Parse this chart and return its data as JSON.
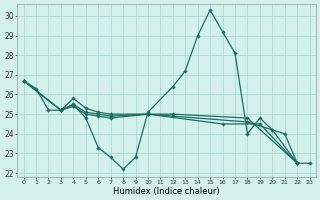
{
  "xlabel": "Humidex (Indice chaleur)",
  "xlim": [
    -0.5,
    23.5
  ],
  "ylim": [
    21.8,
    30.6
  ],
  "yticks": [
    22,
    23,
    24,
    25,
    26,
    27,
    28,
    29,
    30
  ],
  "xticks": [
    0,
    1,
    2,
    3,
    4,
    5,
    6,
    7,
    8,
    9,
    10,
    11,
    12,
    13,
    14,
    15,
    16,
    17,
    18,
    19,
    20,
    21,
    22,
    23
  ],
  "bg_color": "#d4f0ec",
  "grid_color": "#aad8d2",
  "line_color": "#1a6e64",
  "line_width": 0.9,
  "marker": "D",
  "marker_size": 1.8,
  "lines": [
    {
      "x": [
        0,
        1,
        2,
        3,
        4,
        5,
        6,
        7,
        8,
        9,
        10,
        12,
        13,
        14,
        15,
        16,
        17,
        18,
        19,
        20,
        21,
        22,
        23
      ],
      "y": [
        26.7,
        26.3,
        25.2,
        25.2,
        25.5,
        24.8,
        23.3,
        22.8,
        22.2,
        22.8,
        25.1,
        26.4,
        27.2,
        29.0,
        30.3,
        29.2,
        28.1,
        24.0,
        24.8,
        24.2,
        24.0,
        22.5,
        22.5
      ]
    },
    {
      "x": [
        0,
        3,
        4,
        5,
        6,
        7,
        10,
        16,
        19,
        22
      ],
      "y": [
        26.7,
        25.2,
        25.8,
        25.3,
        25.1,
        25.0,
        25.0,
        24.5,
        24.5,
        22.5
      ]
    },
    {
      "x": [
        0,
        3,
        4,
        5,
        6,
        7,
        10,
        12,
        18,
        22
      ],
      "y": [
        26.7,
        25.2,
        25.5,
        25.1,
        25.0,
        24.9,
        25.0,
        25.0,
        24.8,
        22.5
      ]
    },
    {
      "x": [
        0,
        3,
        4,
        5,
        6,
        7,
        10,
        12,
        18,
        20,
        22
      ],
      "y": [
        26.7,
        25.2,
        25.4,
        25.0,
        24.9,
        24.8,
        25.0,
        24.9,
        24.6,
        24.2,
        22.5
      ]
    }
  ]
}
